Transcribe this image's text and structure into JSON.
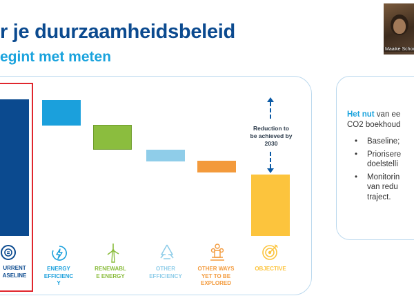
{
  "slide": {
    "title": "r je duurzaamheidsbeleid",
    "subtitle": "egint met meten"
  },
  "video": {
    "participant_name": "Maaike Schoo"
  },
  "chart_data": {
    "type": "bar",
    "categories": [
      "CURRENT BASELINE",
      "ENERGY EFFICIENCY",
      "RENEWABLE ENERGY",
      "OTHER EFFICIENCY",
      "OTHER WAYS YET TO BE EXPLORED",
      "OBJECTIVE"
    ],
    "annotation": "Reduction to be achieved by 2030",
    "colors": [
      "#0b4a8f",
      "#1ba0dc",
      "#8bbd3e",
      "#8fcde9",
      "#f39a3c",
      "#fcc43d"
    ]
  },
  "labels": {
    "baseline": [
      "URRENT",
      "ASELINE"
    ],
    "energy": [
      "ENERGY",
      "EFFICIENC",
      "Y"
    ],
    "renewable": [
      "RENEWABL",
      "E ENERGY"
    ],
    "other": [
      "OTHER",
      "EFFICIENCY"
    ],
    "ways": [
      "OTHER WAYS",
      "YET TO BE",
      "EXPLORED"
    ],
    "objective": [
      "OBJECTIVE"
    ]
  },
  "reduction_text": [
    "Reduction to",
    "be achieved by",
    "2030"
  ],
  "card": {
    "title_bold": "Het nut",
    "title_rest": " van ee",
    "title_line2": "CO2 boekhoud",
    "bullets": [
      [
        "Baseline;"
      ],
      [
        "Priorisere",
        "doelstelli"
      ],
      [
        "Monitorin",
        "van redu",
        "traject."
      ]
    ]
  }
}
